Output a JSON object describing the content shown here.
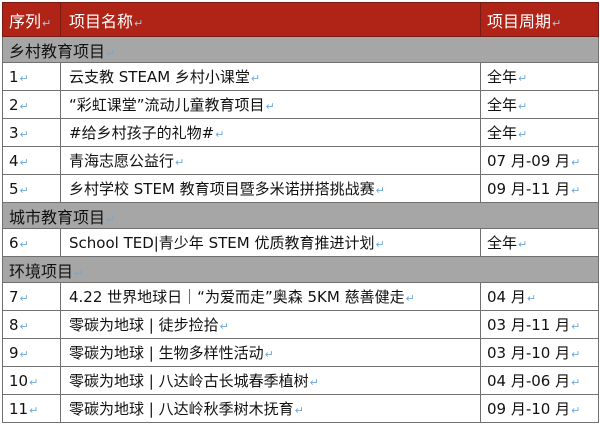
{
  "header": {
    "index": "序列",
    "name": "项目名称",
    "period": "项目周期"
  },
  "colors": {
    "header_bg": "#b02418",
    "section_bg": "#a6a6a6",
    "paragraph_mark": "#6fa8dc"
  },
  "sections": [
    {
      "title": "乡村教育项目",
      "rows": [
        {
          "index": "1",
          "name": "云支教 STEAM 乡村小课堂",
          "period": "全年"
        },
        {
          "index": "2",
          "name": "“彩虹课堂”流动儿童教育项目",
          "period": "全年"
        },
        {
          "index": "3",
          "name": "#给乡村孩子的礼物#",
          "period": "全年"
        },
        {
          "index": "4",
          "name": "青海志愿公益行",
          "period": "07 月-09 月"
        },
        {
          "index": "5",
          "name": "乡村学校 STEM 教育项目暨多米诺拼搭挑战赛",
          "period": "09 月-11 月"
        }
      ]
    },
    {
      "title": "城市教育项目",
      "rows": [
        {
          "index": "6",
          "name": "School TED|青少年 STEM 优质教育推进计划",
          "period": "全年"
        }
      ]
    },
    {
      "title": "环境项目",
      "rows": [
        {
          "index": "7",
          "name": "4.22 世界地球日｜“为爱而走”奥森 5KM 慈善健走",
          "period": "04 月"
        },
        {
          "index": "8",
          "name": "零碳为地球 | 徒步捡拾",
          "period": "03 月-11 月"
        },
        {
          "index": "9",
          "name": "零碳为地球 | 生物多样性活动",
          "period": "03 月-10 月"
        },
        {
          "index": "10",
          "name": "零碳为地球 | 八达岭古长城春季植树",
          "period": "04 月-06 月"
        },
        {
          "index": "11",
          "name": "零碳为地球 | 八达岭秋季树木抚育",
          "period": "09 月-10 月"
        }
      ]
    }
  ]
}
